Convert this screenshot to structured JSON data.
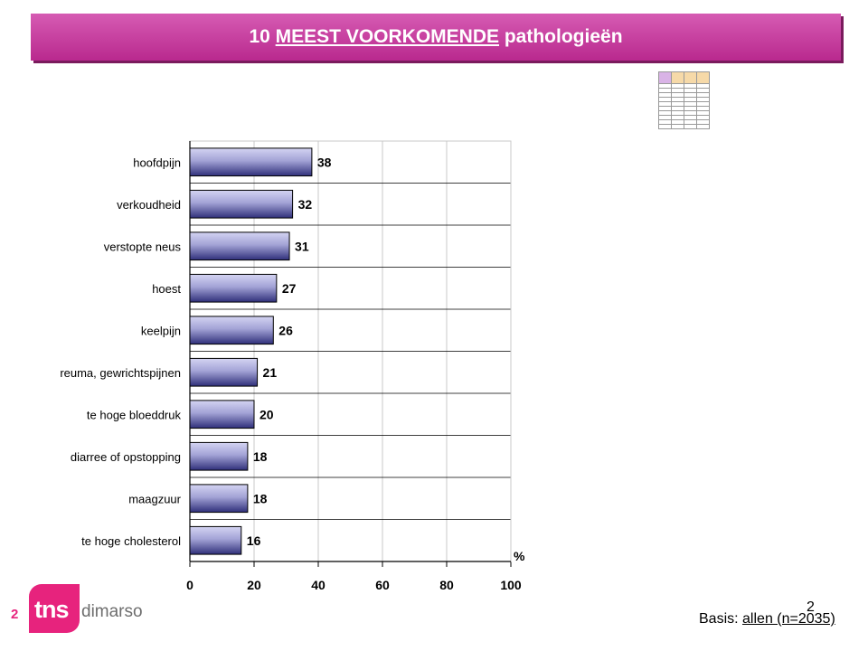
{
  "title": {
    "prefix": "10",
    "emphasis": "MEEST VOORKOMENDE",
    "suffix": "pathologieën"
  },
  "footer": {
    "page_number": "2",
    "overlay_number": "2",
    "basis_label": "Basis:",
    "basis_value": "allen (n=2035)",
    "logo_tns": "tns",
    "logo_dimarso": "dimarso"
  },
  "colors": {
    "title_bar": "#c5339a",
    "bar_fill": "#a3a3d6",
    "logo": "#e7237d"
  },
  "chart_data": {
    "type": "bar",
    "orientation": "horizontal",
    "categories": [
      "hoofdpijn",
      "verkoudheid",
      "verstopte neus",
      "hoest",
      "keelpijn",
      "reuma, gewrichtspijnen",
      "te hoge bloeddruk",
      "diarree of opstopping",
      "maagzuur",
      "te hoge cholesterol"
    ],
    "values": [
      38,
      32,
      31,
      27,
      26,
      21,
      20,
      18,
      18,
      16
    ],
    "xlim": [
      0,
      100
    ],
    "xticks": [
      "0",
      "20",
      "40",
      "60",
      "80",
      "100"
    ],
    "unit_label": "%",
    "grid": true
  }
}
